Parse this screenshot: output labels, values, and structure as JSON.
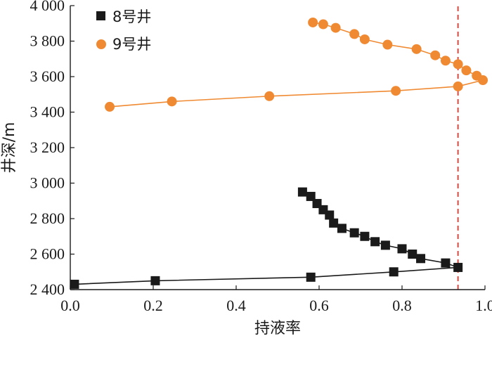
{
  "chart_data": {
    "type": "line",
    "xlabel": "持液率",
    "ylabel": "井深/m",
    "xlim": [
      0,
      1.0
    ],
    "ylim": [
      2400,
      4000
    ],
    "x_ticks": [
      0.0,
      0.2,
      0.4,
      0.6,
      0.8,
      1.0
    ],
    "x_tick_labels": [
      "0.0",
      "0.2",
      "0.4",
      "0.6",
      "0.8",
      "1.0"
    ],
    "y_ticks": [
      2400,
      2600,
      2800,
      3000,
      3200,
      3400,
      3600,
      3800,
      4000
    ],
    "y_tick_labels": [
      "2 400",
      "2 600",
      "2 800",
      "3 000",
      "3 200",
      "3 400",
      "3 600",
      "3 800",
      "4 000"
    ],
    "grid": false,
    "legend_position": "top-left",
    "reference_line": {
      "x": 0.935,
      "style": "dashed",
      "color": "#e8352a"
    },
    "series": [
      {
        "name": "8号井",
        "marker": "square",
        "color": "#1a1a1a",
        "points": [
          [
            0.01,
            2430
          ],
          [
            0.205,
            2450
          ],
          [
            0.58,
            2470
          ],
          [
            0.78,
            2500
          ],
          [
            0.935,
            2525
          ],
          [
            0.905,
            2550
          ],
          [
            0.845,
            2575
          ],
          [
            0.825,
            2600
          ],
          [
            0.8,
            2630
          ],
          [
            0.76,
            2650
          ],
          [
            0.735,
            2670
          ],
          [
            0.71,
            2700
          ],
          [
            0.685,
            2720
          ],
          [
            0.655,
            2745
          ],
          [
            0.635,
            2775
          ],
          [
            0.625,
            2820
          ],
          [
            0.61,
            2850
          ],
          [
            0.595,
            2885
          ],
          [
            0.58,
            2925
          ],
          [
            0.56,
            2950
          ]
        ]
      },
      {
        "name": "9号井",
        "marker": "circle",
        "color": "#f08a32",
        "points": [
          [
            0.095,
            3430
          ],
          [
            0.245,
            3460
          ],
          [
            0.48,
            3490
          ],
          [
            0.785,
            3520
          ],
          [
            0.935,
            3545
          ],
          [
            0.995,
            3580
          ],
          [
            0.98,
            3605
          ],
          [
            0.955,
            3635
          ],
          [
            0.935,
            3670
          ],
          [
            0.905,
            3690
          ],
          [
            0.88,
            3720
          ],
          [
            0.835,
            3755
          ],
          [
            0.765,
            3780
          ],
          [
            0.71,
            3810
          ],
          [
            0.685,
            3840
          ],
          [
            0.64,
            3875
          ],
          [
            0.61,
            3895
          ],
          [
            0.585,
            3905
          ]
        ]
      }
    ]
  }
}
